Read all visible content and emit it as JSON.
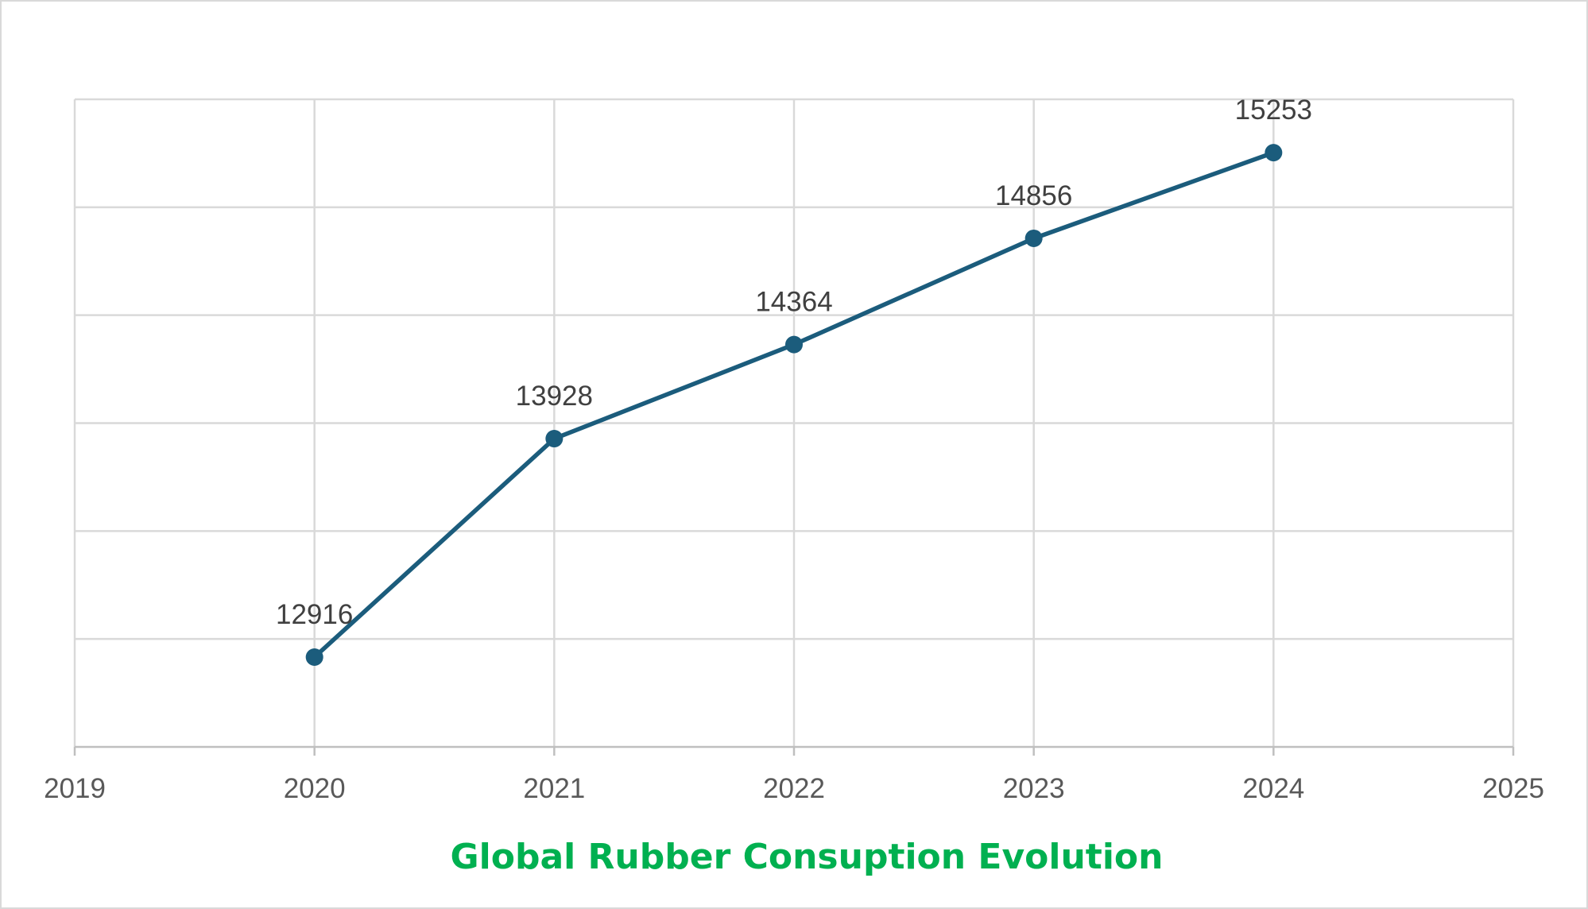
{
  "chart_data": {
    "type": "scatter",
    "title": "Global Rubber Consuption Evolution",
    "title_color": "#00b050",
    "series_color": "#1b5c7c",
    "grid": true,
    "xlim": [
      2019,
      2025
    ],
    "x_ticks": [
      "2019",
      "2020",
      "2021",
      "2022",
      "2023",
      "2024",
      "2025"
    ],
    "ylim": [
      12500,
      15500
    ],
    "y_ticks_visible": false,
    "series": [
      {
        "x": [
          2020,
          2021,
          2022,
          2023,
          2024
        ],
        "values": [
          12916,
          13928,
          14364,
          14856,
          15253
        ],
        "labels": [
          "12916",
          "13928",
          "14364",
          "14856",
          "15253"
        ]
      }
    ]
  }
}
